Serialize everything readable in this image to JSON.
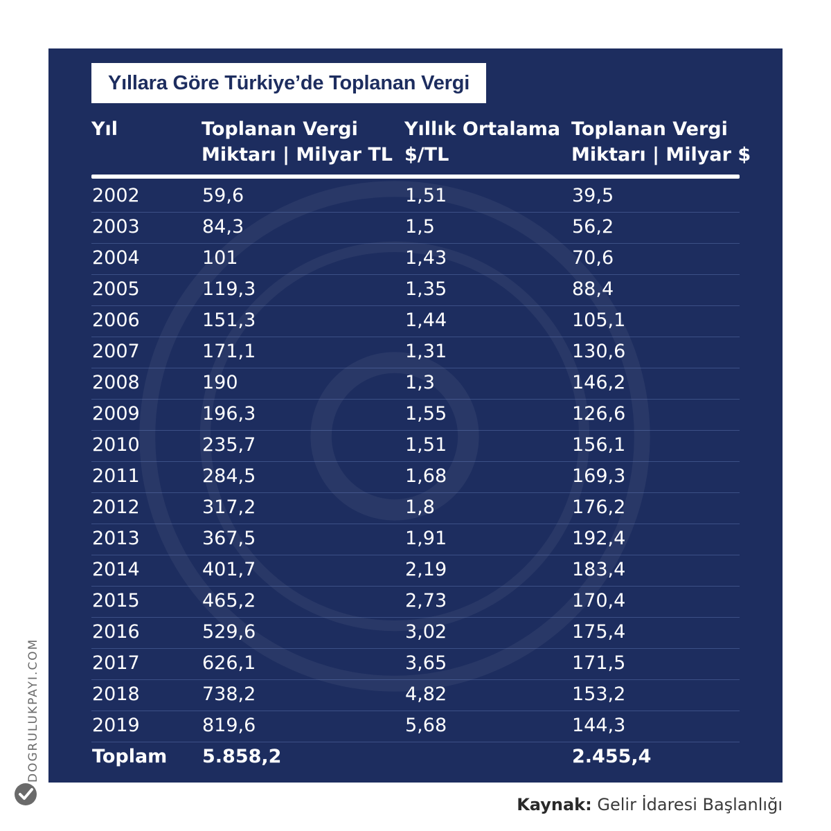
{
  "chart_data": {
    "type": "table",
    "title": "Yıllara Göre Türkiye’de Toplanan Vergi",
    "columns": [
      {
        "line1": "Yıl",
        "line2": ""
      },
      {
        "line1": "Toplanan Vergi",
        "line2": "Miktarı | Milyar TL"
      },
      {
        "line1": "Yıllık Ortalama",
        "line2": "$/TL"
      },
      {
        "line1": "Toplanan Vergi",
        "line2": "Miktarı | Milyar $"
      }
    ],
    "rows": [
      [
        "2002",
        "59,6",
        "1,51",
        "39,5"
      ],
      [
        "2003",
        "84,3",
        "1,5",
        "56,2"
      ],
      [
        "2004",
        "101",
        "1,43",
        "70,6"
      ],
      [
        "2005",
        "119,3",
        "1,35",
        "88,4"
      ],
      [
        "2006",
        "151,3",
        "1,44",
        "105,1"
      ],
      [
        "2007",
        "171,1",
        "1,31",
        "130,6"
      ],
      [
        "2008",
        "190",
        "1,3",
        "146,2"
      ],
      [
        "2009",
        "196,3",
        "1,55",
        "126,6"
      ],
      [
        "2010",
        "235,7",
        "1,51",
        "156,1"
      ],
      [
        "2011",
        "284,5",
        "1,68",
        "169,3"
      ],
      [
        "2012",
        "317,2",
        "1,8",
        "176,2"
      ],
      [
        "2013",
        "367,5",
        "1,91",
        "192,4"
      ],
      [
        "2014",
        "401,7",
        "2,19",
        "183,4"
      ],
      [
        "2015",
        "465,2",
        "2,73",
        "170,4"
      ],
      [
        "2016",
        "529,6",
        "3,02",
        "175,4"
      ],
      [
        "2017",
        "626,1",
        "3,65",
        "171,5"
      ],
      [
        "2018",
        "738,2",
        "4,82",
        "153,2"
      ],
      [
        "2019",
        "819,6",
        "5,68",
        "144,3"
      ]
    ],
    "total": [
      "Toplam",
      "5.858,2",
      "",
      "2.455,4"
    ]
  },
  "source": {
    "label": "Kaynak:",
    "text": "Gelir İdaresi Başlanlığı"
  },
  "brand": {
    "site": "DOGRULUKPAYI.COM"
  },
  "colors": {
    "panel": "#1d2d5f",
    "text": "#ffffff",
    "page": "#ffffff"
  }
}
